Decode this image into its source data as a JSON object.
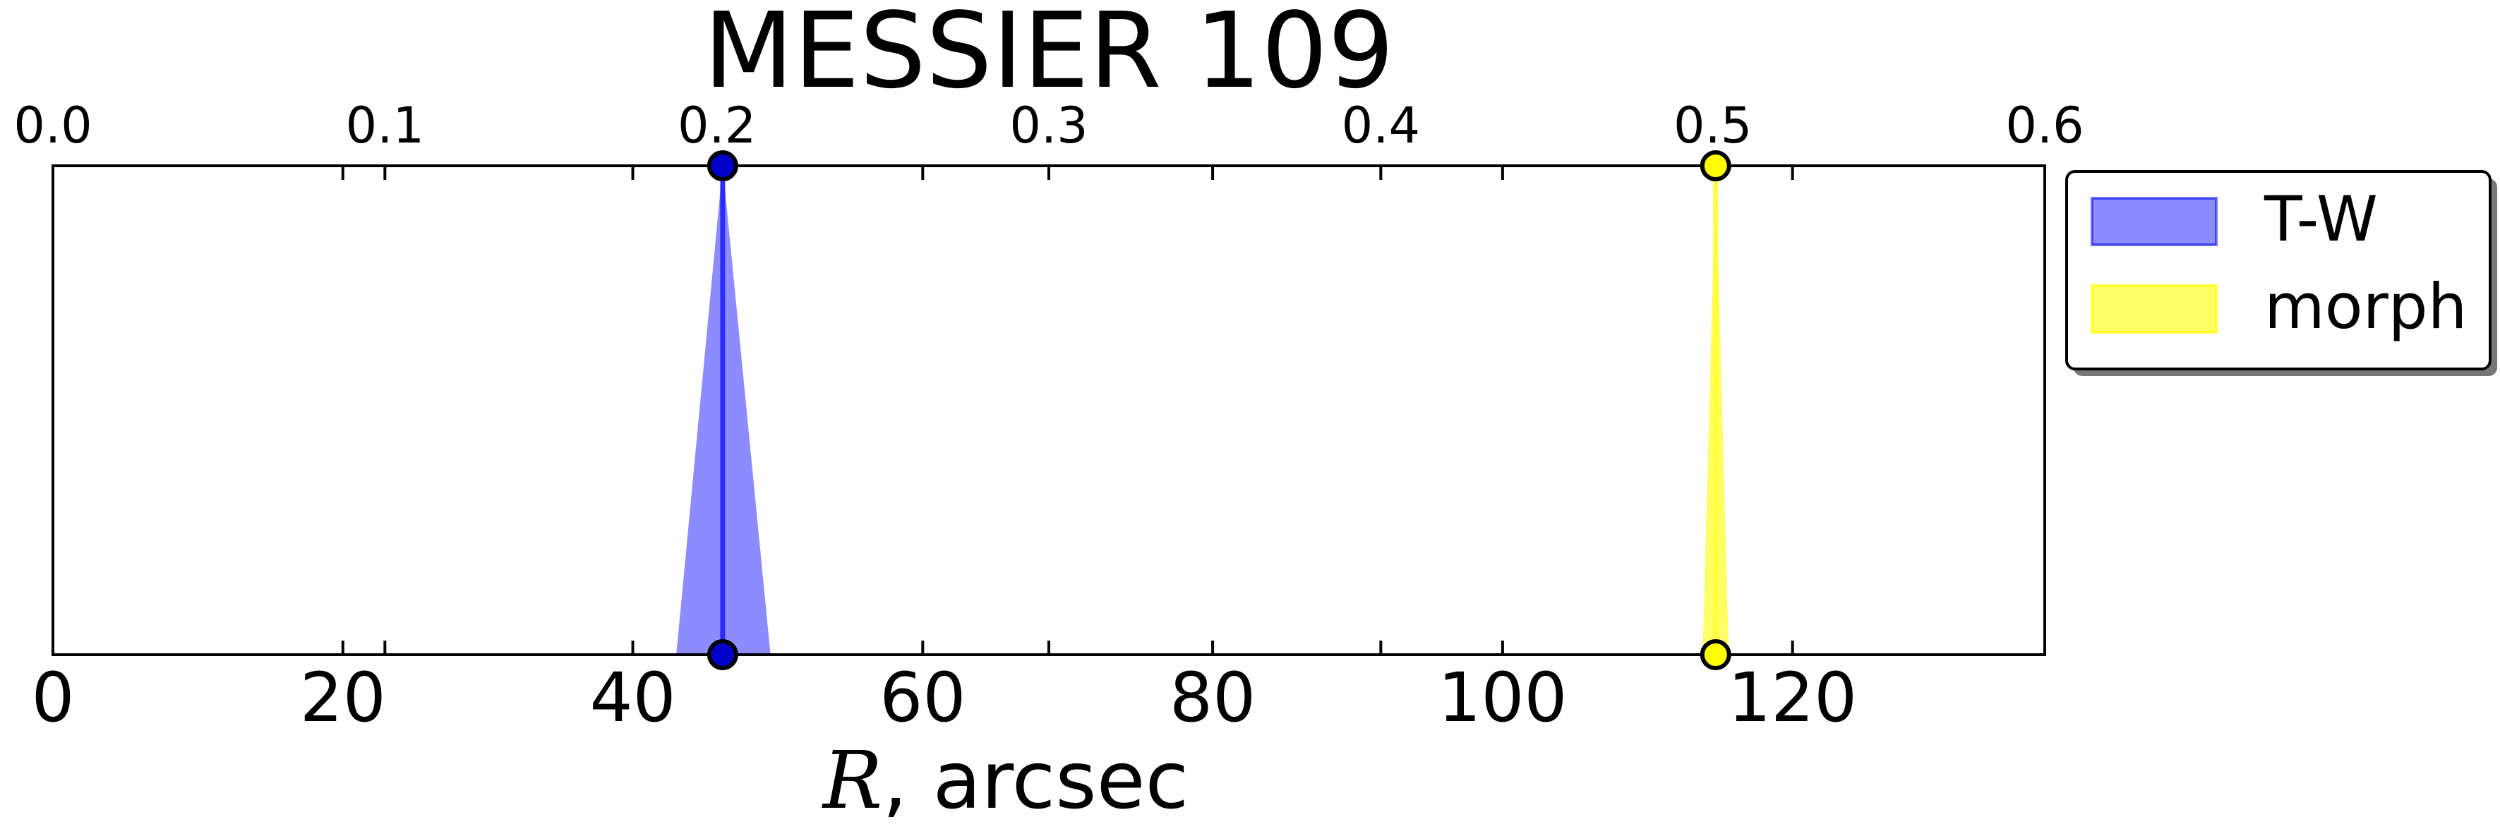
{
  "chart_data": {
    "type": "area",
    "title": "MESSIER 109",
    "xlabel_symbol": "R",
    "xlabel_rest": ", arcsec",
    "xlim": [
      0,
      137.4
    ],
    "top_xlim": [
      0,
      0.6
    ],
    "xticks_bottom": [
      0,
      20,
      40,
      60,
      80,
      100,
      120
    ],
    "xticks_bottom_labels": [
      "0",
      "20",
      "40",
      "60",
      "80",
      "100",
      "120"
    ],
    "xticks_top": [
      0.0,
      0.1,
      0.2,
      0.3,
      0.4,
      0.5,
      0.6
    ],
    "xticks_top_labels": [
      "0.0",
      "0.1",
      "0.2",
      "0.3",
      "0.4",
      "0.5",
      "0.6"
    ],
    "series": [
      {
        "name": "T-W",
        "value": 46.2,
        "lower": 43.0,
        "upper": 49.5,
        "fill_color": "#0000ff",
        "fill_opacity": 0.45,
        "line_color": "#1a1aff",
        "marker_color": "#0000cc"
      },
      {
        "name": "morph",
        "value": 114.7,
        "lower": 113.8,
        "upper": 115.6,
        "fill_color": "#ffff00",
        "fill_opacity": 0.6,
        "line_color": "#ffff33",
        "marker_color": "#ffff00"
      }
    ],
    "legend_placement": "outside right, top",
    "grid": false
  }
}
